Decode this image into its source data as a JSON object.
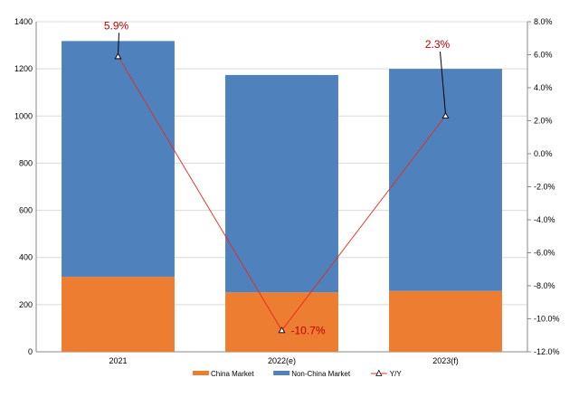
{
  "chart_data": {
    "type": "bar",
    "stacked": true,
    "categories": [
      "2021",
      "2022(e)",
      "2023(f)"
    ],
    "series": [
      {
        "name": "China Market",
        "kind": "bar",
        "axis": "left",
        "color": "#ED7D31",
        "values": [
          318,
          252,
          258
        ]
      },
      {
        "name": "Non-China Market",
        "kind": "bar",
        "axis": "left",
        "color": "#4F81BD",
        "values": [
          1000,
          922,
          942
        ]
      },
      {
        "name": "Y/Y",
        "kind": "line",
        "axis": "right",
        "color": "#E8281E",
        "values": [
          5.9,
          -10.7,
          2.3
        ]
      }
    ],
    "left_axis": {
      "min": 0,
      "max": 1400,
      "step": 200,
      "tick_labels": [
        "0",
        "200",
        "400",
        "600",
        "800",
        "1000",
        "1200",
        "1400"
      ]
    },
    "right_axis": {
      "min": -12,
      "max": 8,
      "step": 2,
      "tick_labels": [
        "-12.0%",
        "-10.0%",
        "-8.0%",
        "-6.0%",
        "-4.0%",
        "-2.0%",
        "0.0%",
        "2.0%",
        "4.0%",
        "6.0%",
        "8.0%"
      ]
    },
    "data_labels": [
      "5.9%",
      "-10.7%",
      "2.3%"
    ],
    "label_color": "#C00000",
    "grid": true,
    "legend_position": "bottom"
  }
}
